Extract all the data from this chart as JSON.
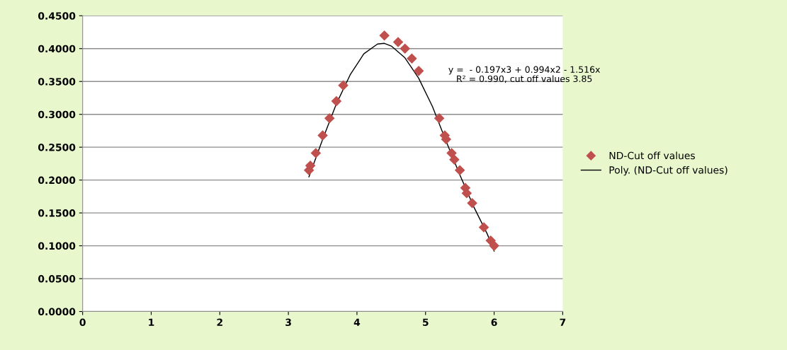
{
  "chart_data": {
    "type": "scatter",
    "series": [
      {
        "name": "ND-Cut off values",
        "color": "#c0504d",
        "marker": "diamond",
        "x": [
          3.3,
          3.32,
          3.4,
          3.5,
          3.6,
          3.7,
          3.8,
          4.4,
          4.6,
          4.7,
          4.8,
          4.9,
          5.2,
          5.28,
          5.3,
          5.38,
          5.42,
          5.5,
          5.58,
          5.6,
          5.68,
          5.85,
          5.95,
          5.98,
          6.0
        ],
        "values": [
          0.215,
          0.222,
          0.241,
          0.268,
          0.294,
          0.32,
          0.344,
          0.42,
          0.41,
          0.4,
          0.385,
          0.366,
          0.294,
          0.268,
          0.262,
          0.241,
          0.231,
          0.215,
          0.188,
          0.18,
          0.165,
          0.128,
          0.108,
          null,
          0.1
        ]
      },
      {
        "name": "Poly. (ND-Cut off values)",
        "type": "line",
        "color": "#000000",
        "marker": "none",
        "line_style": "solid",
        "x": [
          3.3,
          3.5,
          3.7,
          3.9,
          4.1,
          4.3,
          4.4,
          4.5,
          4.7,
          4.9,
          5.1,
          5.3,
          5.5,
          5.7,
          5.9,
          6.0
        ],
        "values": [
          0.205,
          0.262,
          0.316,
          0.36,
          0.392,
          0.407,
          0.408,
          0.404,
          0.386,
          0.355,
          0.312,
          0.259,
          0.208,
          0.16,
          0.118,
          0.092
        ]
      }
    ],
    "xlim": [
      0,
      7
    ],
    "xticks": [
      0,
      1,
      2,
      3,
      4,
      5,
      6,
      7
    ],
    "ylim": [
      0,
      0.45
    ],
    "yticks": [
      {
        "value": 0,
        "label": "0.0000"
      },
      {
        "value": 0.05,
        "label": "0.0500"
      },
      {
        "value": 0.1,
        "label": "0.1000"
      },
      {
        "value": 0.15,
        "label": "0.1500"
      },
      {
        "value": 0.2,
        "label": "0.2000"
      },
      {
        "value": 0.25,
        "label": "0.2500"
      },
      {
        "value": 0.3,
        "label": "0.3000"
      },
      {
        "value": 0.35,
        "label": "0.3500"
      },
      {
        "value": 0.4,
        "label": "0.4000"
      },
      {
        "value": 0.45,
        "label": "0.4500"
      }
    ],
    "grid": "y",
    "legend": "right",
    "annotations": [
      "y =  - 0.197x3 + 0.994x2 - 1.516x\nR² = 0.990, cut off values 3.85"
    ]
  }
}
